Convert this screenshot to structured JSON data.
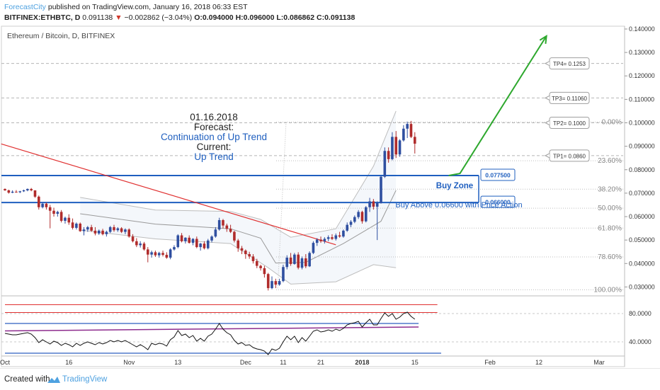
{
  "header": {
    "author": "ForecastCity",
    "published": "published on TradingView.com, January 16, 2018 06:33 EST",
    "symbol": "BITFINEX:ETHBTC, D",
    "last": "0.091138",
    "change": "−0.002862 (−3.04%)",
    "open": "O:0.094000",
    "high": "H:0.096000",
    "low": "L:0.086862",
    "close": "C:0.091138"
  },
  "chart_data": {
    "type": "candlestick",
    "title": "Ethereum / Bitcoin, D, BITFINEX",
    "price_axis": {
      "labels": [
        "0.140000",
        "0.130000",
        "0.120000",
        "0.110000",
        "0.100000",
        "0.090000",
        "0.080000",
        "0.070000",
        "0.060000",
        "0.050000",
        "0.040000",
        "0.030000"
      ],
      "range": [
        0.0262,
        0.1412
      ]
    },
    "time_axis": {
      "labels": [
        "Oct",
        "16",
        "Nov",
        "13",
        "Dec",
        "11",
        "21",
        "2018",
        "15",
        "Feb",
        "12",
        "Mar"
      ],
      "bold": [
        "2018"
      ]
    },
    "candles": [
      [
        0.0718,
        0.072,
        0.071,
        0.0712
      ],
      [
        0.0712,
        0.0715,
        0.0698,
        0.0702
      ],
      [
        0.0702,
        0.0712,
        0.07,
        0.0706
      ],
      [
        0.0706,
        0.0713,
        0.0702,
        0.0704
      ],
      [
        0.0704,
        0.071,
        0.07,
        0.0708
      ],
      [
        0.0708,
        0.0715,
        0.0705,
        0.0712
      ],
      [
        0.0712,
        0.072,
        0.0708,
        0.0718
      ],
      [
        0.0718,
        0.0722,
        0.0708,
        0.0712
      ],
      [
        0.0712,
        0.0712,
        0.068,
        0.0685
      ],
      [
        0.0685,
        0.069,
        0.063,
        0.064
      ],
      [
        0.064,
        0.066,
        0.0635,
        0.0655
      ],
      [
        0.0655,
        0.066,
        0.063,
        0.064
      ],
      [
        0.064,
        0.065,
        0.055,
        0.0625
      ],
      [
        0.0625,
        0.0638,
        0.06,
        0.0612
      ],
      [
        0.0612,
        0.0625,
        0.06,
        0.062
      ],
      [
        0.062,
        0.0628,
        0.0575,
        0.0582
      ],
      [
        0.0582,
        0.06,
        0.057,
        0.0595
      ],
      [
        0.0595,
        0.061,
        0.0565,
        0.0575
      ],
      [
        0.0575,
        0.0592,
        0.0545,
        0.0552
      ],
      [
        0.0552,
        0.0575,
        0.0545,
        0.057
      ],
      [
        0.057,
        0.0575,
        0.0535,
        0.0538
      ],
      [
        0.0538,
        0.0555,
        0.052,
        0.0545
      ],
      [
        0.0545,
        0.056,
        0.0535,
        0.0555
      ],
      [
        0.0555,
        0.0565,
        0.0535,
        0.054
      ],
      [
        0.054,
        0.0555,
        0.052,
        0.0528
      ],
      [
        0.0528,
        0.0545,
        0.0522,
        0.054
      ],
      [
        0.054,
        0.0548,
        0.052,
        0.0525
      ],
      [
        0.0525,
        0.054,
        0.0515,
        0.0535
      ],
      [
        0.0535,
        0.056,
        0.053,
        0.0555
      ],
      [
        0.0555,
        0.0565,
        0.0535,
        0.0542
      ],
      [
        0.0542,
        0.0555,
        0.0535,
        0.055
      ],
      [
        0.055,
        0.0555,
        0.053,
        0.0535
      ],
      [
        0.0535,
        0.055,
        0.0525,
        0.0545
      ],
      [
        0.0545,
        0.055,
        0.051,
        0.0515
      ],
      [
        0.0515,
        0.0525,
        0.049,
        0.0495
      ],
      [
        0.0495,
        0.0508,
        0.047,
        0.0478
      ],
      [
        0.0478,
        0.0495,
        0.0468,
        0.0485
      ],
      [
        0.0485,
        0.0492,
        0.0455,
        0.046
      ],
      [
        0.046,
        0.047,
        0.0405,
        0.0438
      ],
      [
        0.0438,
        0.0455,
        0.0425,
        0.0448
      ],
      [
        0.0448,
        0.0455,
        0.0428,
        0.0435
      ],
      [
        0.0435,
        0.045,
        0.0425,
        0.0445
      ],
      [
        0.0445,
        0.0455,
        0.043,
        0.0437
      ],
      [
        0.0437,
        0.0448,
        0.042,
        0.0425
      ],
      [
        0.0425,
        0.0465,
        0.0418,
        0.046
      ],
      [
        0.046,
        0.0478,
        0.0455,
        0.047
      ],
      [
        0.047,
        0.0525,
        0.0465,
        0.052
      ],
      [
        0.052,
        0.053,
        0.049,
        0.0495
      ],
      [
        0.0495,
        0.0512,
        0.0485,
        0.051
      ],
      [
        0.051,
        0.052,
        0.0485,
        0.0488
      ],
      [
        0.0488,
        0.0508,
        0.0478,
        0.0505
      ],
      [
        0.0505,
        0.0515,
        0.0465,
        0.047
      ],
      [
        0.047,
        0.0488,
        0.0455,
        0.0485
      ],
      [
        0.0485,
        0.0495,
        0.046,
        0.0465
      ],
      [
        0.0465,
        0.0505,
        0.046,
        0.0498
      ],
      [
        0.0498,
        0.052,
        0.049,
        0.0515
      ],
      [
        0.0515,
        0.0555,
        0.051,
        0.0545
      ],
      [
        0.0545,
        0.0595,
        0.054,
        0.0585
      ],
      [
        0.0585,
        0.059,
        0.055,
        0.0562
      ],
      [
        0.0562,
        0.057,
        0.0535,
        0.0548
      ],
      [
        0.0548,
        0.0565,
        0.053,
        0.0535
      ],
      [
        0.0535,
        0.054,
        0.049,
        0.0498
      ],
      [
        0.0498,
        0.0505,
        0.045,
        0.0465
      ],
      [
        0.0465,
        0.0475,
        0.044,
        0.0455
      ],
      [
        0.0455,
        0.046,
        0.042,
        0.044
      ],
      [
        0.044,
        0.045,
        0.042,
        0.043
      ],
      [
        0.043,
        0.044,
        0.04,
        0.041
      ],
      [
        0.041,
        0.042,
        0.038,
        0.039
      ],
      [
        0.039,
        0.0395,
        0.037,
        0.038
      ],
      [
        0.038,
        0.039,
        0.034,
        0.0355
      ],
      [
        0.0355,
        0.036,
        0.0285,
        0.0295
      ],
      [
        0.0295,
        0.0345,
        0.029,
        0.0325
      ],
      [
        0.0325,
        0.0335,
        0.0295,
        0.031
      ],
      [
        0.031,
        0.0335,
        0.0305,
        0.0325
      ],
      [
        0.0325,
        0.0395,
        0.032,
        0.0385
      ],
      [
        0.0385,
        0.0435,
        0.0375,
        0.0425
      ],
      [
        0.0425,
        0.0445,
        0.039,
        0.0398
      ],
      [
        0.0398,
        0.0445,
        0.0395,
        0.0438
      ],
      [
        0.0438,
        0.0448,
        0.0375,
        0.0382
      ],
      [
        0.0382,
        0.043,
        0.0375,
        0.0422
      ],
      [
        0.0422,
        0.044,
        0.038,
        0.0388
      ],
      [
        0.0388,
        0.0452,
        0.0385,
        0.0445
      ],
      [
        0.0445,
        0.0495,
        0.044,
        0.0488
      ],
      [
        0.0488,
        0.0508,
        0.0475,
        0.0502
      ],
      [
        0.0502,
        0.0515,
        0.0488,
        0.0495
      ],
      [
        0.0495,
        0.0512,
        0.0485,
        0.0505
      ],
      [
        0.0505,
        0.052,
        0.0495,
        0.0512
      ],
      [
        0.0512,
        0.0525,
        0.05,
        0.0505
      ],
      [
        0.0505,
        0.0528,
        0.0498,
        0.052
      ],
      [
        0.052,
        0.0535,
        0.051,
        0.0515
      ],
      [
        0.0515,
        0.0545,
        0.051,
        0.054
      ],
      [
        0.054,
        0.0575,
        0.0535,
        0.0565
      ],
      [
        0.0565,
        0.0585,
        0.0555,
        0.0578
      ],
      [
        0.0578,
        0.0605,
        0.0572,
        0.0598
      ],
      [
        0.0598,
        0.0628,
        0.059,
        0.062
      ],
      [
        0.062,
        0.0625,
        0.057,
        0.058
      ],
      [
        0.058,
        0.0645,
        0.0575,
        0.064
      ],
      [
        0.064,
        0.068,
        0.062,
        0.0665
      ],
      [
        0.0665,
        0.0675,
        0.063,
        0.0642
      ],
      [
        0.0642,
        0.0665,
        0.05,
        0.0658
      ],
      [
        0.0658,
        0.0775,
        0.0655,
        0.077
      ],
      [
        0.077,
        0.0895,
        0.0765,
        0.088
      ],
      [
        0.088,
        0.0895,
        0.083,
        0.0845
      ],
      [
        0.0845,
        0.096,
        0.084,
        0.094
      ],
      [
        0.094,
        0.0965,
        0.085,
        0.0865
      ],
      [
        0.0865,
        0.093,
        0.0855,
        0.0925
      ],
      [
        0.0925,
        0.099,
        0.092,
        0.0975
      ],
      [
        0.0975,
        0.1005,
        0.0935,
        0.0995
      ],
      [
        0.0995,
        0.1008,
        0.0935,
        0.094
      ],
      [
        0.094,
        0.096,
        0.0869,
        0.0911
      ]
    ],
    "bollinger": {
      "middle_points": [
        [
          "20",
          "0.0612"
        ],
        [
          "40",
          "0.0568"
        ],
        [
          "60",
          "0.0548"
        ],
        [
          "68",
          "0.0508"
        ],
        [
          "72",
          "0.0402"
        ],
        [
          "80",
          "0.0405"
        ],
        [
          "90",
          "0.0485"
        ],
        [
          "100",
          "0.058"
        ],
        [
          "104",
          "0.0712"
        ]
      ],
      "upper_points": [
        [
          "20",
          "0.0682"
        ],
        [
          "40",
          "0.0628"
        ],
        [
          "60",
          "0.0622"
        ],
        [
          "68",
          "0.0588"
        ],
        [
          "76",
          "0.0512"
        ],
        [
          "88",
          "0.0548"
        ],
        [
          "98",
          "0.0815"
        ],
        [
          "104",
          "0.105"
        ]
      ],
      "lower_points": [
        [
          "20",
          "0.0542"
        ],
        [
          "40",
          "0.0505"
        ],
        [
          "60",
          "0.0485"
        ],
        [
          "70",
          "0.0382"
        ],
        [
          "76",
          "0.0312"
        ],
        [
          "88",
          "0.0322"
        ],
        [
          "98",
          "0.0395"
        ],
        [
          "104",
          "0.0382"
        ]
      ]
    },
    "fibonacci": {
      "levels": [
        {
          "label": "0.00%",
          "price": 0.1003
        },
        {
          "label": "23.60%",
          "price": 0.0838
        },
        {
          "label": "38.20%",
          "price": 0.0717
        },
        {
          "label": "50.00%",
          "price": 0.0636
        },
        {
          "label": "61.80%",
          "price": 0.0551
        },
        {
          "label": "78.60%",
          "price": 0.0428
        },
        {
          "label": "100.00%",
          "price": 0.0288
        }
      ]
    },
    "targets": [
      {
        "label": "TP4= 0.1253",
        "price": 0.1253
      },
      {
        "label": "TP3= 0.11060",
        "price": 0.1106
      },
      {
        "label": "TP2= 0.1000",
        "price": 0.1
      },
      {
        "label": "TP1= 0.0860",
        "price": 0.086
      }
    ],
    "zone_lines": [
      {
        "label": "0.077500",
        "price": 0.0775
      },
      {
        "label": "0.066000",
        "price": 0.066
      }
    ],
    "trendline": {
      "from": [
        "-1",
        "0.0910"
      ],
      "to": [
        "88",
        "0.0480"
      ]
    },
    "forecast_arrow": {
      "points": [
        [
          "118",
          "0.0775"
        ],
        [
          "121",
          "0.0784"
        ],
        [
          "144",
          "0.137"
        ]
      ]
    },
    "annotations": {
      "date": "01.16.2018",
      "forecast_label": "Forecast:",
      "forecast_value": "Continuation of Up Trend",
      "current_label": "Current:",
      "current_value": "Up Trend",
      "buy_zone": "Buy Zone",
      "buy_above": "Buy Above 0.06600 with Price Action"
    },
    "rsi_panel": {
      "labels": [
        "80.0000",
        "40.0000"
      ],
      "range": [
        22,
        103
      ],
      "values": [
        52,
        51,
        50,
        50,
        51,
        52,
        53,
        51,
        46,
        39,
        43,
        40,
        37,
        41,
        39,
        35,
        38,
        36,
        33,
        38,
        35,
        38,
        40,
        38,
        36,
        39,
        37,
        39,
        42,
        40,
        42,
        40,
        42,
        39,
        36,
        33,
        36,
        33,
        29,
        38,
        36,
        38,
        37,
        34,
        43,
        47,
        56,
        49,
        51,
        46,
        49,
        41,
        45,
        41,
        48,
        51,
        58,
        66,
        58,
        53,
        50,
        42,
        37,
        39,
        35,
        36,
        32,
        30,
        29,
        27,
        22,
        30,
        28,
        31,
        40,
        48,
        43,
        48,
        39,
        46,
        41,
        48,
        55,
        57,
        54,
        55,
        57,
        55,
        58,
        56,
        59,
        64,
        66,
        67,
        69,
        61,
        67,
        72,
        64,
        64,
        73,
        81,
        76,
        80,
        72,
        75,
        80,
        82,
        76,
        72
      ],
      "red_lines": [
        [
          "0",
          "92.5"
        ],
        [
          "115",
          "92.5"
        ],
        [
          "0",
          "81.5"
        ],
        [
          "115",
          "81.5"
        ]
      ],
      "blue_lines": [
        [
          "0",
          "24.0"
        ],
        [
          "116",
          "24.0"
        ],
        [
          "0",
          "66.0"
        ],
        [
          "110",
          "66.0"
        ]
      ],
      "purple_line": [
        [
          "0",
          "55.5"
        ],
        [
          "110",
          "61.0"
        ]
      ]
    }
  }
}
